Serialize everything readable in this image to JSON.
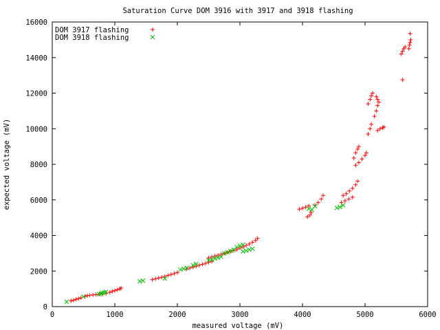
{
  "chart_data": {
    "type": "scatter",
    "title": "Saturation Curve DOM 3916 with 3917 and 3918 flashing",
    "xlabel": "measured voltage (mV)",
    "ylabel": "expected voltage (mV)",
    "xlim": [
      0,
      6000
    ],
    "ylim": [
      0,
      16000
    ],
    "xticks": [
      0,
      1000,
      2000,
      3000,
      4000,
      5000,
      6000
    ],
    "yticks": [
      0,
      2000,
      4000,
      6000,
      8000,
      10000,
      12000,
      14000,
      16000
    ],
    "grid": false,
    "legend_position": "top-left",
    "series": [
      {
        "name": "DOM 3917 flashing",
        "marker": "plus",
        "color": "#ff0000",
        "points": [
          [
            300,
            320
          ],
          [
            340,
            360
          ],
          [
            380,
            410
          ],
          [
            420,
            450
          ],
          [
            460,
            500
          ],
          [
            520,
            580
          ],
          [
            560,
            620
          ],
          [
            600,
            640
          ],
          [
            650,
            660
          ],
          [
            700,
            680
          ],
          [
            750,
            690
          ],
          [
            800,
            700
          ],
          [
            860,
            740
          ],
          [
            920,
            800
          ],
          [
            960,
            860
          ],
          [
            1000,
            900
          ],
          [
            1040,
            950
          ],
          [
            1080,
            1000
          ],
          [
            1100,
            1050
          ],
          [
            1600,
            1520
          ],
          [
            1650,
            1560
          ],
          [
            1700,
            1610
          ],
          [
            1750,
            1650
          ],
          [
            1800,
            1700
          ],
          [
            1850,
            1760
          ],
          [
            1900,
            1810
          ],
          [
            1950,
            1860
          ],
          [
            2000,
            1920
          ],
          [
            2150,
            2110
          ],
          [
            2200,
            2170
          ],
          [
            2250,
            2220
          ],
          [
            2300,
            2270
          ],
          [
            2350,
            2330
          ],
          [
            2400,
            2380
          ],
          [
            2450,
            2430
          ],
          [
            2500,
            2490
          ],
          [
            2550,
            2540
          ],
          [
            2500,
            2740
          ],
          [
            2550,
            2790
          ],
          [
            2600,
            2840
          ],
          [
            2650,
            2890
          ],
          [
            2700,
            2940
          ],
          [
            2750,
            2990
          ],
          [
            2800,
            3050
          ],
          [
            2850,
            3100
          ],
          [
            2900,
            3150
          ],
          [
            2950,
            3210
          ],
          [
            3000,
            3290
          ],
          [
            3050,
            3360
          ],
          [
            3100,
            3440
          ],
          [
            3150,
            3520
          ],
          [
            3200,
            3620
          ],
          [
            3250,
            3720
          ],
          [
            3280,
            3840
          ],
          [
            3950,
            5480
          ],
          [
            4000,
            5530
          ],
          [
            4050,
            5590
          ],
          [
            4100,
            5660
          ],
          [
            4080,
            5050
          ],
          [
            4120,
            5150
          ],
          [
            4140,
            5300
          ],
          [
            4200,
            5700
          ],
          [
            4250,
            5850
          ],
          [
            4300,
            6050
          ],
          [
            4330,
            6250
          ],
          [
            4650,
            6250
          ],
          [
            4700,
            6350
          ],
          [
            4750,
            6500
          ],
          [
            4800,
            6650
          ],
          [
            4850,
            6850
          ],
          [
            4880,
            7050
          ],
          [
            4620,
            5850
          ],
          [
            4680,
            5950
          ],
          [
            4740,
            6050
          ],
          [
            4800,
            6150
          ],
          [
            4820,
            8350
          ],
          [
            4850,
            8650
          ],
          [
            4880,
            8850
          ],
          [
            4900,
            9000
          ],
          [
            4850,
            7950
          ],
          [
            4900,
            8100
          ],
          [
            4950,
            8300
          ],
          [
            5000,
            8500
          ],
          [
            5020,
            8650
          ],
          [
            5050,
            9700
          ],
          [
            5080,
            10000
          ],
          [
            5100,
            10250
          ],
          [
            5050,
            11400
          ],
          [
            5080,
            11650
          ],
          [
            5100,
            11850
          ],
          [
            5120,
            12000
          ],
          [
            5150,
            10700
          ],
          [
            5180,
            11000
          ],
          [
            5200,
            11300
          ],
          [
            5220,
            11500
          ],
          [
            5180,
            11800
          ],
          [
            5200,
            11650
          ],
          [
            5200,
            9900
          ],
          [
            5240,
            10000
          ],
          [
            5280,
            10050
          ],
          [
            5300,
            10100
          ],
          [
            5580,
            14200
          ],
          [
            5600,
            14350
          ],
          [
            5620,
            14500
          ],
          [
            5640,
            14600
          ],
          [
            5600,
            12750
          ],
          [
            5700,
            14500
          ],
          [
            5710,
            14700
          ],
          [
            5720,
            14850
          ],
          [
            5730,
            15000
          ],
          [
            5720,
            15350
          ]
        ]
      },
      {
        "name": "DOM 3918 flashing",
        "marker": "cross",
        "color": "#00c000",
        "points": [
          [
            230,
            270
          ],
          [
            500,
            560
          ],
          [
            750,
            700
          ],
          [
            780,
            740
          ],
          [
            800,
            770
          ],
          [
            830,
            800
          ],
          [
            860,
            820
          ],
          [
            1400,
            1420
          ],
          [
            1450,
            1460
          ],
          [
            1800,
            1580
          ],
          [
            2050,
            2080
          ],
          [
            2100,
            2130
          ],
          [
            2150,
            2180
          ],
          [
            2250,
            2330
          ],
          [
            2300,
            2400
          ],
          [
            2500,
            2600
          ],
          [
            2550,
            2650
          ],
          [
            2600,
            2700
          ],
          [
            2650,
            2750
          ],
          [
            2700,
            2800
          ],
          [
            2750,
            2990
          ],
          [
            2800,
            3050
          ],
          [
            2850,
            3120
          ],
          [
            2900,
            3200
          ],
          [
            2950,
            3350
          ],
          [
            3000,
            3420
          ],
          [
            3050,
            3480
          ],
          [
            3050,
            3100
          ],
          [
            3100,
            3150
          ],
          [
            3150,
            3200
          ],
          [
            3200,
            3250
          ],
          [
            4100,
            5500
          ],
          [
            4150,
            5450
          ],
          [
            4200,
            5650
          ],
          [
            4550,
            5550
          ],
          [
            4600,
            5600
          ],
          [
            4650,
            5700
          ]
        ]
      }
    ]
  }
}
